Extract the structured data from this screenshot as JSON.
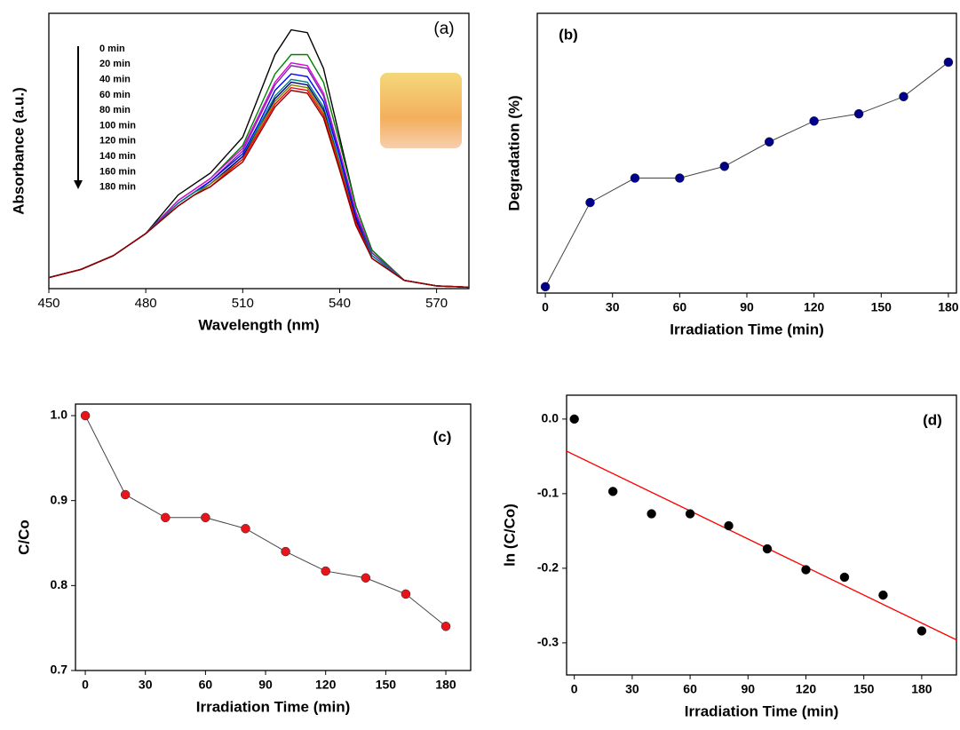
{
  "chart_data": [
    {
      "type": "line",
      "annotation": "(a)",
      "x_label": "Wavelength (nm)",
      "y_label": "Absorbance (a.u.)",
      "x": [
        450,
        460,
        470,
        480,
        490,
        495,
        500,
        510,
        515,
        520,
        525,
        530,
        535,
        540,
        545,
        550,
        560,
        570,
        580
      ],
      "xlim": [
        450,
        580
      ],
      "xticks": [
        450,
        480,
        510,
        540,
        570
      ],
      "ylim": [
        0,
        1
      ],
      "series": [
        {
          "name": "0  min",
          "color": "#000000",
          "values": [
            0.04,
            0.07,
            0.12,
            0.2,
            0.34,
            0.38,
            0.42,
            0.55,
            0.7,
            0.85,
            0.94,
            0.93,
            0.8,
            0.55,
            0.3,
            0.14,
            0.03,
            0.01,
            0.005
          ]
        },
        {
          "name": "20  min",
          "color": "#008000",
          "values": [
            0.04,
            0.07,
            0.12,
            0.2,
            0.32,
            0.36,
            0.4,
            0.52,
            0.65,
            0.78,
            0.85,
            0.85,
            0.75,
            0.53,
            0.3,
            0.14,
            0.03,
            0.01,
            0.005
          ]
        },
        {
          "name": "40  min",
          "color": "#e000e0",
          "values": [
            0.04,
            0.07,
            0.12,
            0.2,
            0.32,
            0.36,
            0.4,
            0.51,
            0.63,
            0.75,
            0.82,
            0.81,
            0.71,
            0.5,
            0.28,
            0.13,
            0.03,
            0.01,
            0.005
          ]
        },
        {
          "name": "60  min",
          "color": "#7030a0",
          "values": [
            0.04,
            0.07,
            0.12,
            0.2,
            0.31,
            0.35,
            0.39,
            0.5,
            0.62,
            0.74,
            0.81,
            0.8,
            0.7,
            0.49,
            0.27,
            0.13,
            0.03,
            0.01,
            0.005
          ]
        },
        {
          "name": "80  min",
          "color": "#0000ff",
          "values": [
            0.04,
            0.07,
            0.12,
            0.2,
            0.31,
            0.35,
            0.39,
            0.49,
            0.6,
            0.72,
            0.78,
            0.77,
            0.68,
            0.48,
            0.26,
            0.12,
            0.03,
            0.01,
            0.005
          ]
        },
        {
          "name": "100 min",
          "color": "#008080",
          "values": [
            0.04,
            0.07,
            0.12,
            0.2,
            0.31,
            0.35,
            0.38,
            0.48,
            0.59,
            0.7,
            0.76,
            0.75,
            0.66,
            0.46,
            0.25,
            0.12,
            0.03,
            0.01,
            0.005
          ]
        },
        {
          "name": "120 min",
          "color": "#000080",
          "values": [
            0.04,
            0.07,
            0.12,
            0.2,
            0.3,
            0.34,
            0.38,
            0.48,
            0.58,
            0.69,
            0.75,
            0.74,
            0.65,
            0.45,
            0.25,
            0.11,
            0.03,
            0.01,
            0.005
          ]
        },
        {
          "name": "140 min",
          "color": "#808000",
          "values": [
            0.04,
            0.07,
            0.12,
            0.2,
            0.3,
            0.34,
            0.38,
            0.47,
            0.58,
            0.68,
            0.74,
            0.73,
            0.64,
            0.45,
            0.24,
            0.11,
            0.03,
            0.01,
            0.005
          ]
        },
        {
          "name": "160 min",
          "color": "#ff0000",
          "values": [
            0.04,
            0.07,
            0.12,
            0.2,
            0.3,
            0.34,
            0.37,
            0.47,
            0.57,
            0.67,
            0.73,
            0.72,
            0.63,
            0.44,
            0.24,
            0.11,
            0.03,
            0.01,
            0.005
          ]
        },
        {
          "name": "180 min",
          "color": "#8b0000",
          "values": [
            0.04,
            0.07,
            0.12,
            0.2,
            0.3,
            0.34,
            0.37,
            0.46,
            0.56,
            0.66,
            0.72,
            0.71,
            0.62,
            0.43,
            0.23,
            0.11,
            0.03,
            0.01,
            0.005
          ]
        }
      ]
    },
    {
      "type": "line",
      "annotation": "(b)",
      "x_label": "Irradiation Time (min)",
      "y_label": "Degradation (%)",
      "x": [
        0,
        20,
        40,
        60,
        80,
        100,
        120,
        140,
        160,
        180
      ],
      "values": [
        0,
        9.3,
        12,
        12,
        13.3,
        16,
        18.3,
        19.1,
        21,
        24.8
      ],
      "color": "#00008b",
      "line_color": "#444444",
      "markers": true,
      "xlim": [
        -3.6,
        183.6
      ],
      "xticks": [
        0,
        30,
        60,
        90,
        120,
        150,
        180
      ],
      "ylim": [
        -0.7,
        30.2
      ]
    },
    {
      "type": "line",
      "annotation": "(c)",
      "x_label": "Irradiation Time (min)",
      "y_label": "C/Co",
      "x": [
        0,
        20,
        40,
        60,
        80,
        100,
        120,
        140,
        160,
        180
      ],
      "values": [
        1,
        0.907,
        0.88,
        0.88,
        0.867,
        0.84,
        0.817,
        0.809,
        0.79,
        0.752
      ],
      "color": "#e8141c",
      "line_color": "#444444",
      "markers": true,
      "xlim": [
        -4.9,
        192.4
      ],
      "xticks": [
        0,
        30,
        60,
        90,
        120,
        150,
        180
      ],
      "ylim": [
        0.7,
        1.0136
      ],
      "yticks": [
        0.7,
        0.8,
        0.9,
        {
          "value": 1,
          "label": "1.0"
        }
      ]
    },
    {
      "type": "scatter",
      "annotation": "(d)",
      "x_label": "Irradiation Time (min)",
      "y_label": "ln (C/Co)",
      "x": [
        0,
        20,
        40,
        60,
        80,
        100,
        120,
        140,
        160,
        180
      ],
      "values": [
        0,
        -0.097,
        -0.127,
        -0.127,
        -0.143,
        -0.174,
        -0.202,
        -0.212,
        -0.236,
        -0.284
      ],
      "color": "#000000",
      "fit": {
        "x": [
          -4,
          198
        ],
        "values": [
          -0.043,
          -0.296
        ],
        "color": "#ff0000"
      },
      "xlim": [
        -4,
        198
      ],
      "xticks": [
        0,
        30,
        60,
        90,
        120,
        150,
        180
      ],
      "ylim": [
        -0.343,
        0.032
      ],
      "yticks": [
        {
          "value": 0,
          "label": "0.0"
        },
        -0.1,
        -0.2,
        -0.3
      ]
    }
  ]
}
